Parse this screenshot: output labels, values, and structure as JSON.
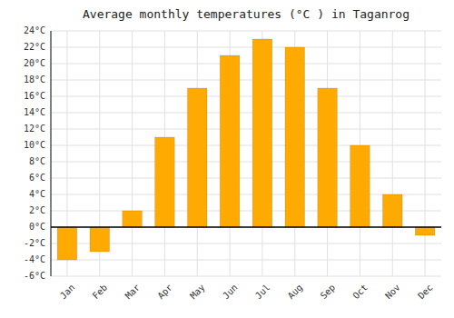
{
  "chart_data": {
    "type": "bar",
    "title": "Average monthly temperatures (°C ) in Taganrog",
    "categories": [
      "Jan",
      "Feb",
      "Mar",
      "Apr",
      "May",
      "Jun",
      "Jul",
      "Aug",
      "Sep",
      "Oct",
      "Nov",
      "Dec"
    ],
    "values": [
      -4,
      -3,
      2,
      11,
      17,
      21,
      23,
      22,
      17,
      10,
      4,
      -1
    ],
    "color": "#FFAA00",
    "ylim": [
      -6,
      24
    ],
    "yticks": [
      {
        "value": -6,
        "label": "-6°C"
      },
      {
        "value": -4,
        "label": "-4°C"
      },
      {
        "value": -2,
        "label": "-2°C"
      },
      {
        "value": 0,
        "label": "0°C"
      },
      {
        "value": 2,
        "label": "2°C"
      },
      {
        "value": 4,
        "label": "4°C"
      },
      {
        "value": 6,
        "label": "6°C"
      },
      {
        "value": 8,
        "label": "8°C"
      },
      {
        "value": 10,
        "label": "10°C"
      },
      {
        "value": 12,
        "label": "12°C"
      },
      {
        "value": 14,
        "label": "14°C"
      },
      {
        "value": 16,
        "label": "16°C"
      },
      {
        "value": 18,
        "label": "18°C"
      },
      {
        "value": 20,
        "label": "20°C"
      },
      {
        "value": 22,
        "label": "22°C"
      },
      {
        "value": 24,
        "label": "24°C"
      }
    ],
    "grid": true
  }
}
